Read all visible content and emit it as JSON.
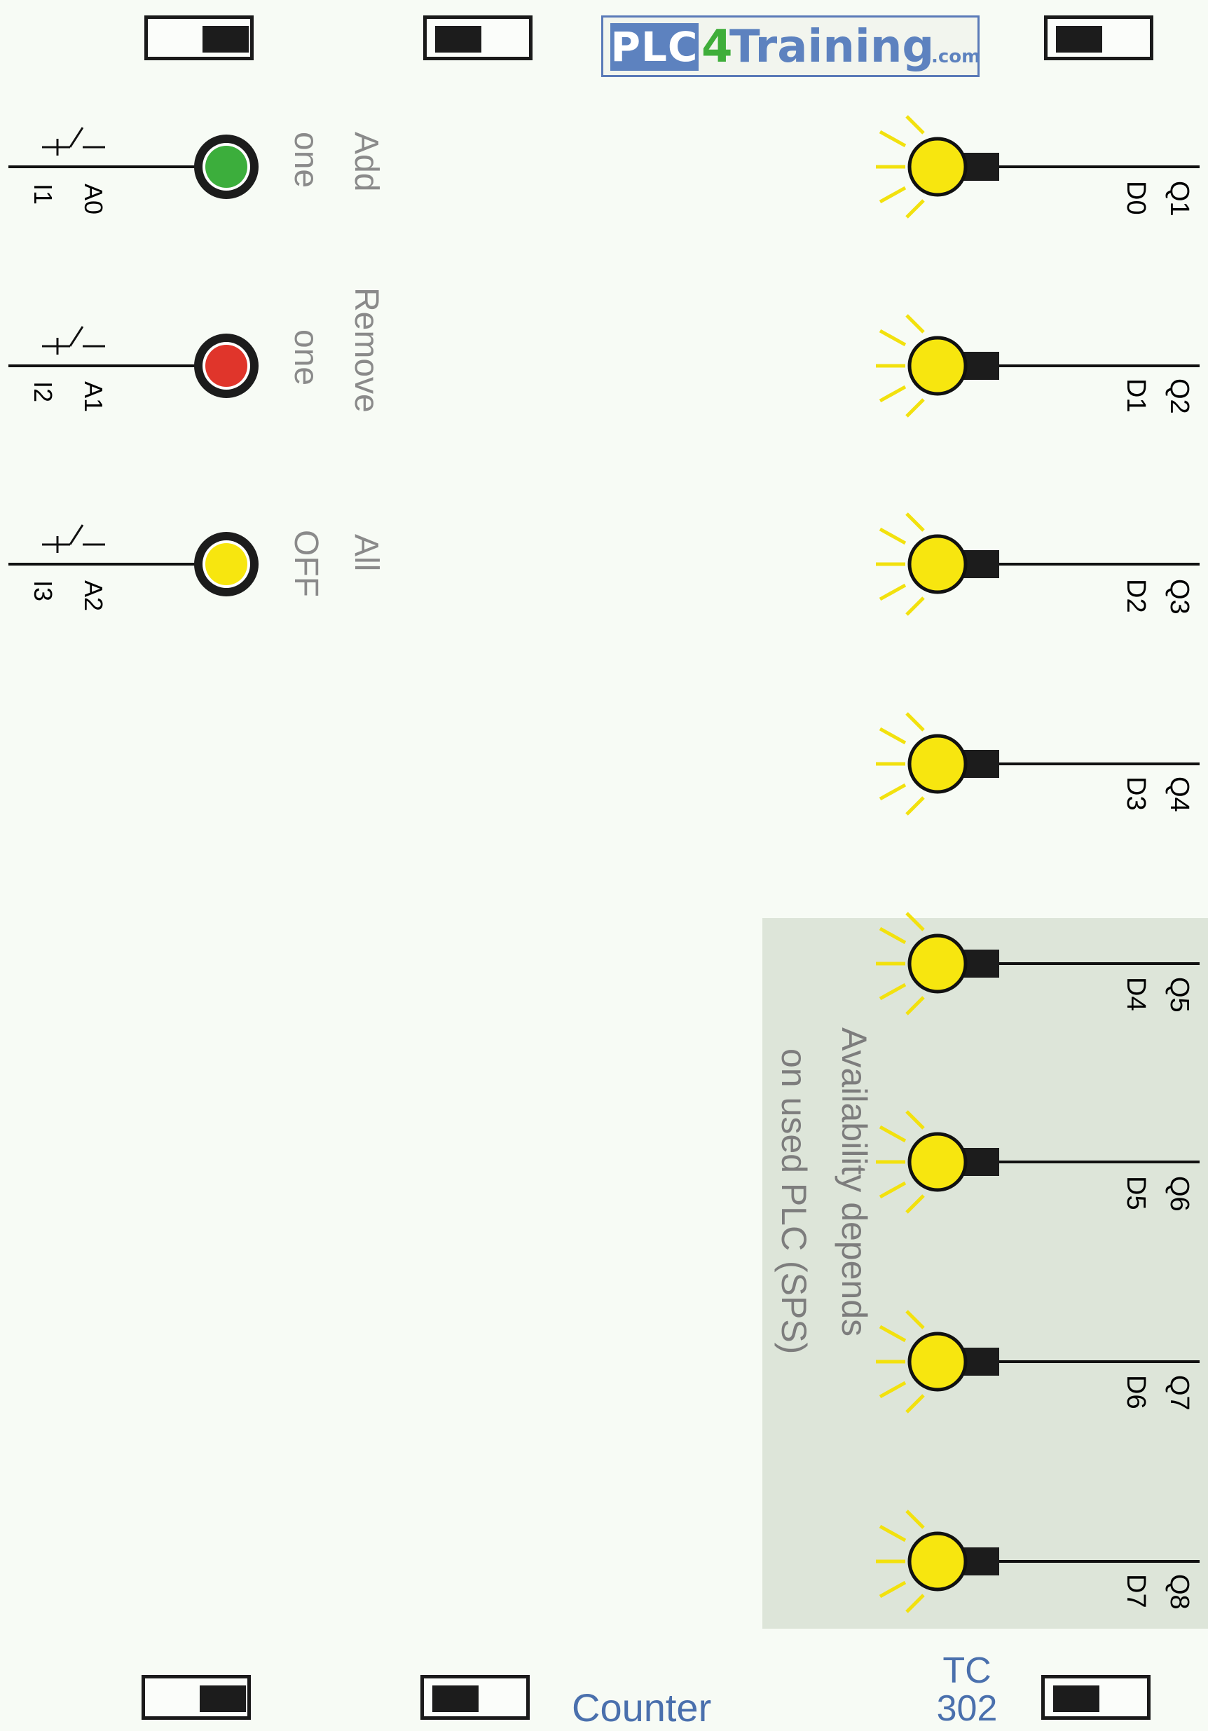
{
  "logo": {
    "plc": "PLC",
    "four": "4",
    "training": "Training",
    "com": ".com"
  },
  "inputs": [
    {
      "addr": "A0",
      "input": "I1",
      "caption_line1": "Add",
      "caption_line2": "one",
      "button_color": "#3cae3c"
    },
    {
      "addr": "A1",
      "input": "I2",
      "caption_line1": "Remove",
      "caption_line2": "one",
      "button_color": "#e0352b"
    },
    {
      "addr": "A2",
      "input": "I3",
      "caption_line1": "All",
      "caption_line2": "OFF",
      "button_color": "#f7e60f"
    }
  ],
  "outputs": [
    {
      "q": "Q1",
      "d": "D0"
    },
    {
      "q": "Q2",
      "d": "D1"
    },
    {
      "q": "Q3",
      "d": "D2"
    },
    {
      "q": "Q4",
      "d": "D3"
    },
    {
      "q": "Q5",
      "d": "D4"
    },
    {
      "q": "Q6",
      "d": "D5"
    },
    {
      "q": "Q7",
      "d": "D6"
    },
    {
      "q": "Q8",
      "d": "D7"
    }
  ],
  "availability_note": {
    "line1": "Availability depends",
    "line2": "on used PLC (SPS)"
  },
  "footer": {
    "title": "Counter",
    "code_line1": "TC",
    "code_line2": "302"
  },
  "colors": {
    "lamp": "#f7e60f",
    "ray": "#f2e10e",
    "shaded_panel": "#dde5d9",
    "caption_gray": "#8a8a8a",
    "accent_blue": "#4a70ad"
  }
}
